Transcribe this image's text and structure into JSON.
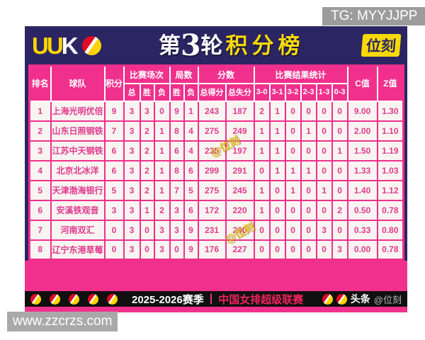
{
  "page": {
    "tg_label": "TG: MYYJJPP",
    "site_label": "www.zzcrzs.com"
  },
  "banner": {
    "logo": {
      "u1": "U",
      "u2": "U",
      "k": "K"
    },
    "title": {
      "round_prefix": "第",
      "round_number": "3",
      "round_suffix": "轮",
      "subject": "积分榜"
    },
    "badge": "位刻"
  },
  "watermark": {
    "text": "@位刻"
  },
  "icons": {
    "volleyball": "red-white-yellow ball (css circle)"
  },
  "table": {
    "header": {
      "rank": "排名",
      "team": "球队",
      "points": "积分",
      "matches": {
        "label": "比赛场次",
        "subs": [
          "总",
          "胜",
          "负"
        ]
      },
      "sets": {
        "label": "局数",
        "subs": [
          "胜",
          "负"
        ]
      },
      "scores": {
        "label": "分数",
        "subs": [
          "总得分",
          "总失分"
        ]
      },
      "results": {
        "label": "比赛结果统计",
        "subs": [
          "3-0",
          "3-1",
          "3-2",
          "2-3",
          "1-3",
          "0-3"
        ]
      },
      "c": "C值",
      "z": "Z值"
    },
    "rows": [
      [
        "1",
        "上海光明优倍",
        "9",
        "3",
        "3",
        "0",
        "9",
        "1",
        "243",
        "187",
        "2",
        "1",
        "0",
        "0",
        "0",
        "0",
        "9.00",
        "1.30"
      ],
      [
        "2",
        "山东日照钢铁",
        "7",
        "3",
        "2",
        "1",
        "8",
        "4",
        "275",
        "249",
        "1",
        "1",
        "0",
        "1",
        "0",
        "0",
        "2.00",
        "1.10"
      ],
      [
        "3",
        "江苏中天钢铁",
        "6",
        "3",
        "2",
        "1",
        "6",
        "4",
        "235",
        "197",
        "1",
        "1",
        "0",
        "0",
        "0",
        "1",
        "1.50",
        "1.19"
      ],
      [
        "4",
        "北京北冰洋",
        "6",
        "3",
        "2",
        "1",
        "8",
        "6",
        "299",
        "291",
        "0",
        "1",
        "1",
        "1",
        "0",
        "0",
        "1.33",
        "1.03"
      ],
      [
        "5",
        "天津渤海银行",
        "5",
        "3",
        "2",
        "1",
        "7",
        "5",
        "275",
        "245",
        "1",
        "0",
        "1",
        "0",
        "1",
        "0",
        "1.40",
        "1.12"
      ],
      [
        "6",
        "安溪铁观音",
        "3",
        "3",
        "1",
        "2",
        "3",
        "6",
        "172",
        "220",
        "1",
        "0",
        "0",
        "0",
        "0",
        "2",
        "0.50",
        "0.78"
      ],
      [
        "7",
        "河南双汇",
        "0",
        "3",
        "0",
        "3",
        "3",
        "9",
        "231",
        "290",
        "0",
        "0",
        "0",
        "0",
        "3",
        "0",
        "0.33",
        "0.80"
      ],
      [
        "8",
        "辽宁东港草莓",
        "0",
        "3",
        "0",
        "3",
        "0",
        "9",
        "176",
        "227",
        "0",
        "0",
        "0",
        "0",
        "0",
        "3",
        "0.00",
        "0.78"
      ]
    ]
  },
  "footer": {
    "season": "2025-2026赛季",
    "divider": "|",
    "league": "中国女排超级联赛",
    "source_bold": "头条",
    "source_handle": "@位刻"
  },
  "colors": {
    "navy": "#2b2563",
    "pink": "#f0308c",
    "pink-text": "#e23a8e",
    "row-bg": "#f8f4f1",
    "yellow": "#f7d908",
    "ball-yellow": "#ffd400",
    "footer-red": "#f0245f",
    "gray-box": "#9c9c9c",
    "site-gray": "#a9a9a9"
  }
}
